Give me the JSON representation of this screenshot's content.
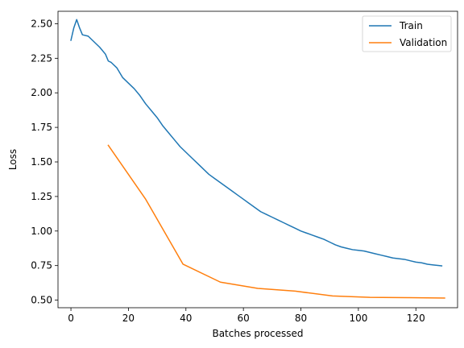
{
  "chart_data": {
    "type": "line",
    "xlabel": "Batches processed",
    "ylabel": "Loss",
    "xlim": [
      -4.5,
      134.5
    ],
    "ylim": [
      0.445,
      2.59
    ],
    "xticks": [
      0,
      20,
      40,
      60,
      80,
      100,
      120
    ],
    "yticks": [
      0.5,
      0.75,
      1.0,
      1.25,
      1.5,
      1.75,
      2.0,
      2.25,
      2.5
    ],
    "ytick_labels": [
      "0.50",
      "0.75",
      "1.00",
      "1.25",
      "1.50",
      "1.75",
      "2.00",
      "2.25",
      "2.50"
    ],
    "grid": false,
    "legend_position": "top-right",
    "series": [
      {
        "name": "Train",
        "color": "#1f77b4",
        "x": [
          0,
          1,
          2,
          3,
          4,
          6,
          8,
          10,
          12,
          13,
          14,
          16,
          18,
          20,
          22,
          24,
          26,
          28,
          30,
          32,
          34,
          36,
          38,
          40,
          42,
          44,
          46,
          48,
          50,
          52,
          54,
          56,
          58,
          60,
          62,
          64,
          66,
          68,
          70,
          72,
          74,
          76,
          78,
          80,
          82,
          84,
          86,
          88,
          90,
          92,
          94,
          96,
          98,
          100,
          102,
          104,
          106,
          108,
          110,
          112,
          114,
          116,
          118,
          120,
          122,
          124,
          126,
          128,
          129
        ],
        "y": [
          2.38,
          2.47,
          2.53,
          2.47,
          2.42,
          2.41,
          2.37,
          2.33,
          2.28,
          2.23,
          2.22,
          2.18,
          2.11,
          2.07,
          2.03,
          1.98,
          1.92,
          1.87,
          1.82,
          1.76,
          1.71,
          1.66,
          1.61,
          1.57,
          1.53,
          1.49,
          1.45,
          1.41,
          1.38,
          1.35,
          1.32,
          1.29,
          1.26,
          1.23,
          1.2,
          1.17,
          1.14,
          1.12,
          1.1,
          1.08,
          1.06,
          1.04,
          1.02,
          1.0,
          0.985,
          0.97,
          0.955,
          0.94,
          0.92,
          0.9,
          0.885,
          0.875,
          0.865,
          0.86,
          0.855,
          0.845,
          0.835,
          0.825,
          0.815,
          0.805,
          0.8,
          0.795,
          0.785,
          0.775,
          0.77,
          0.76,
          0.755,
          0.75,
          0.748
        ]
      },
      {
        "name": "Validation",
        "color": "#ff7f0e",
        "x": [
          13,
          26,
          39,
          52,
          65,
          78,
          91,
          104,
          117,
          130
        ],
        "y": [
          1.62,
          1.23,
          0.76,
          0.63,
          0.585,
          0.565,
          0.53,
          0.52,
          0.518,
          0.515
        ]
      }
    ]
  }
}
